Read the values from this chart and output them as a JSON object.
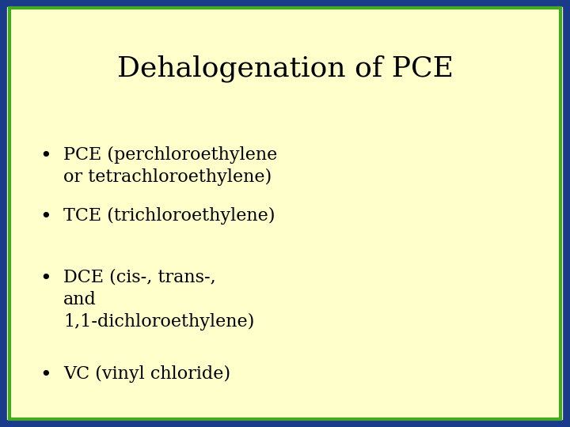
{
  "title": "Dehalogenation of PCE",
  "title_fontsize": 26,
  "title_color": "#000000",
  "background_color": "#ffffcc",
  "border_outer_color": "#1a3a8a",
  "border_inner_color": "#44aa22",
  "bullet_items": [
    {
      "lines": [
        "PCE (perchloroethylene",
        "or tetrachloroethylene)"
      ]
    },
    {
      "lines": [
        "TCE (trichloroethylene)"
      ]
    },
    {
      "lines": [
        "DCE (cis-, trans-,",
        "and",
        "1,1-dichloroethylene)"
      ]
    },
    {
      "lines": [
        "VC (vinyl chloride)"
      ]
    }
  ],
  "bullet_fontsize": 16,
  "bullet_color": "#000000",
  "bullet_symbol": "•",
  "figwidth": 7.2,
  "figheight": 5.4,
  "dpi": 100
}
